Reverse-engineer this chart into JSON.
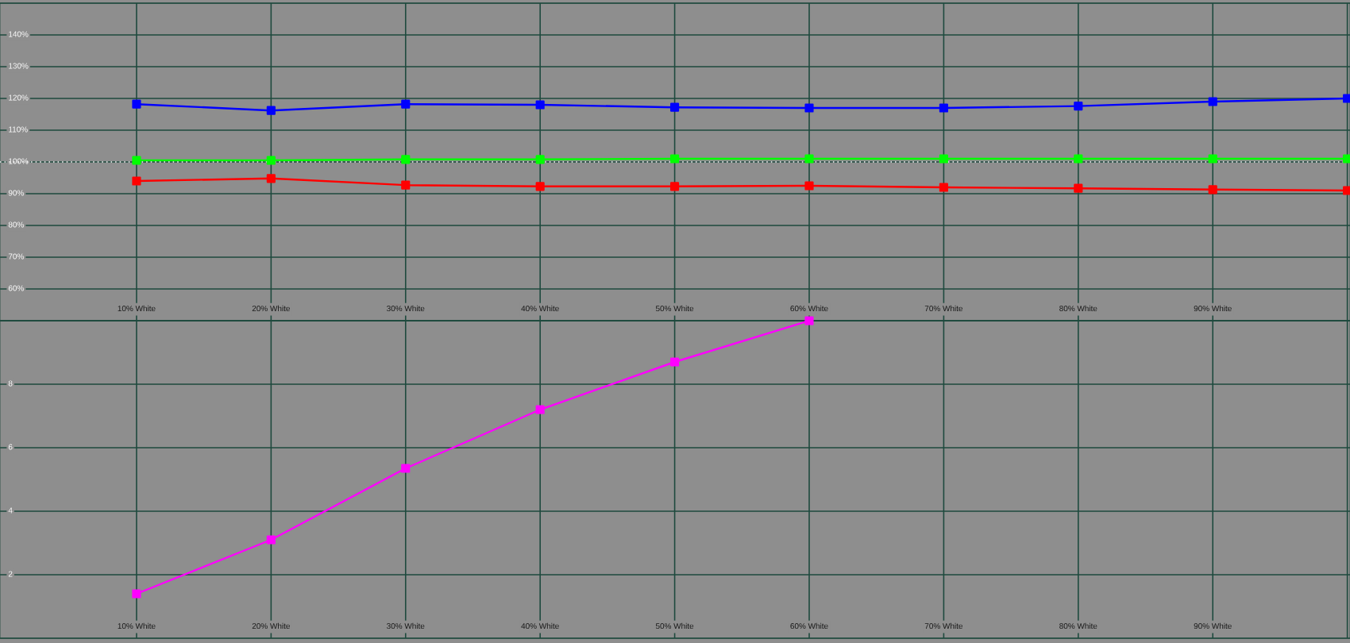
{
  "chart_data": [
    {
      "type": "line",
      "categories": [
        "10% White",
        "20% White",
        "30% White",
        "40% White",
        "50% White",
        "60% White",
        "70% White",
        "80% White",
        "90% White",
        null
      ],
      "series": [
        {
          "color": "#0000ff",
          "values": [
            118.2,
            116.2,
            118.2,
            118.0,
            117.2,
            117.0,
            117.0,
            117.6,
            119.0,
            120.0
          ]
        },
        {
          "color": "#00ff00",
          "values": [
            100.5,
            100.5,
            100.8,
            100.8,
            101.0,
            101.0,
            101.0,
            101.0,
            101.0,
            101.0
          ]
        },
        {
          "color": "#ff0000",
          "values": [
            94.0,
            94.8,
            92.7,
            92.3,
            92.3,
            92.5,
            92.0,
            91.7,
            91.3,
            91.0
          ]
        }
      ],
      "ylim": [
        50,
        150
      ],
      "yticks": [
        {
          "value": 50,
          "label": null
        },
        {
          "value": 60,
          "label": "60%"
        },
        {
          "value": 70,
          "label": "70%"
        },
        {
          "value": 80,
          "label": "80%"
        },
        {
          "value": 90,
          "label": "90%"
        },
        {
          "value": 100,
          "label": "100%"
        },
        {
          "value": 110,
          "label": "110%"
        },
        {
          "value": 120,
          "label": "120%"
        },
        {
          "value": 130,
          "label": "130%"
        },
        {
          "value": 140,
          "label": "140%"
        },
        {
          "value": 150,
          "label": null
        }
      ],
      "grid": true,
      "marker": "square",
      "line_style": "solid",
      "ref_lines": [
        {
          "axis": "y",
          "value": 100,
          "color": "#ffffff",
          "line_style": "dotted"
        }
      ]
    },
    {
      "type": "line",
      "categories": [
        "10% White",
        "20% White",
        "30% White",
        "40% White",
        "50% White",
        "60% White",
        "70% White",
        "80% White",
        "90% White",
        null
      ],
      "series": [
        {
          "color": "#ff00ff",
          "values": [
            1.4,
            3.1,
            5.35,
            7.2,
            8.7,
            10.0,
            null,
            null,
            null,
            null
          ]
        }
      ],
      "ylim": [
        0,
        10
      ],
      "yticks": [
        {
          "value": 0,
          "label": null
        },
        2,
        4,
        6,
        8,
        {
          "value": 10,
          "label": null
        }
      ],
      "grid": true,
      "marker": "square",
      "line_style": "solid"
    }
  ]
}
